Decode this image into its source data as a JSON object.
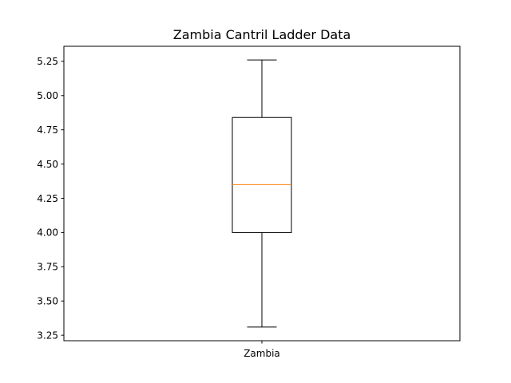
{
  "chart_data": {
    "type": "box",
    "title": "Zambia Cantril Ladder Data",
    "xlabel": "",
    "ylabel": "",
    "ylim": [
      3.21,
      5.36
    ],
    "y_ticks": [
      {
        "value": 3.25,
        "label": "3.25"
      },
      {
        "value": 3.5,
        "label": "3.50"
      },
      {
        "value": 3.75,
        "label": "3.75"
      },
      {
        "value": 4.0,
        "label": "4.00"
      },
      {
        "value": 4.25,
        "label": "4.25"
      },
      {
        "value": 4.5,
        "label": "4.50"
      },
      {
        "value": 4.75,
        "label": "4.75"
      },
      {
        "value": 5.0,
        "label": "5.00"
      },
      {
        "value": 5.25,
        "label": "5.25"
      }
    ],
    "categories": [
      "Zambia"
    ],
    "boxes": [
      {
        "category": "Zambia",
        "whisker_low": 3.31,
        "q1": 4.0,
        "median": 4.35,
        "q3": 4.84,
        "whisker_high": 5.26
      }
    ],
    "grid": false,
    "colors": {
      "box": "#000000",
      "median": "#ff7f0e",
      "whisker": "#000000",
      "axes": "#000000",
      "background": "#ffffff"
    }
  }
}
